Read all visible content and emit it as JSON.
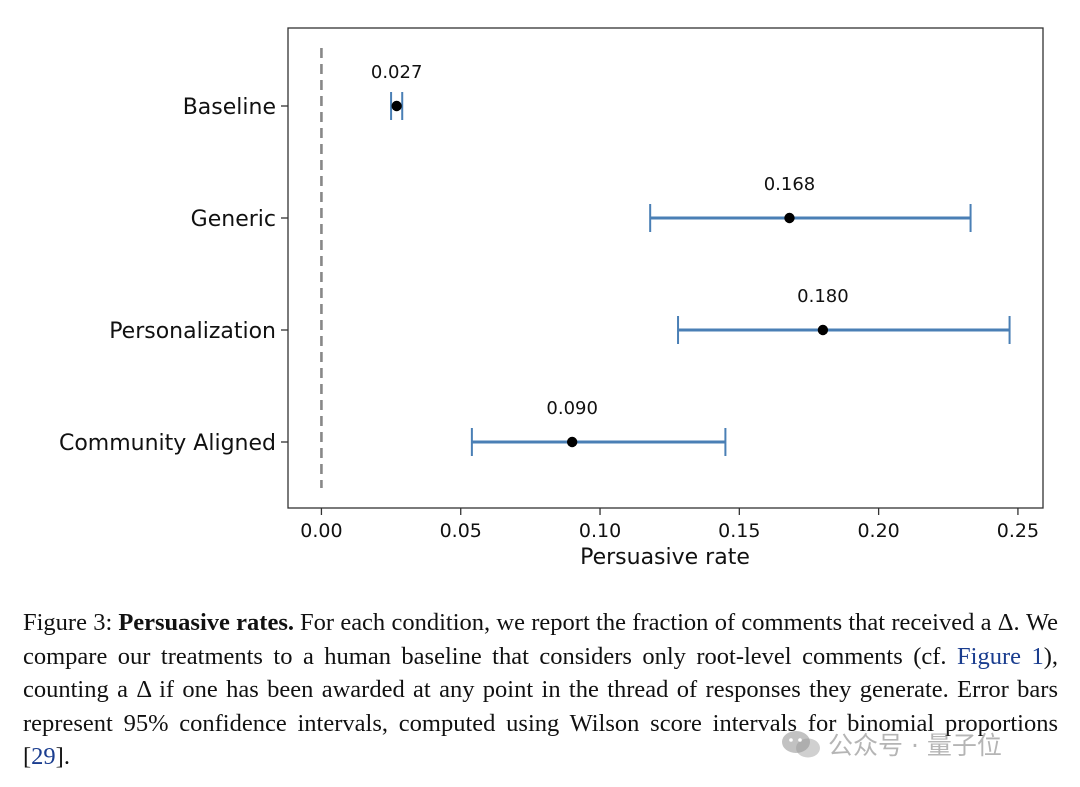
{
  "chart_data": {
    "type": "errorbar",
    "categories": [
      "Baseline",
      "Generic",
      "Personalization",
      "Community Aligned"
    ],
    "series": [
      {
        "values": [
          0.027,
          0.168,
          0.18,
          0.09
        ],
        "value_labels": [
          "0.027",
          "0.168",
          "0.180",
          "0.090"
        ],
        "ci_lower": [
          0.025,
          0.118,
          0.128,
          0.054
        ],
        "ci_upper": [
          0.029,
          0.233,
          0.247,
          0.145
        ]
      }
    ],
    "reference_line": {
      "x": 0.0,
      "style": "dashed"
    },
    "xlabel": "Persuasive rate",
    "xlim": [
      -0.012,
      0.259
    ],
    "xticks": [
      0.0,
      0.05,
      0.1,
      0.15,
      0.2,
      0.25
    ],
    "xtick_labels": [
      "0.00",
      "0.05",
      "0.10",
      "0.15",
      "0.20",
      "0.25"
    ],
    "grid": false,
    "colors": {
      "errorbar": "#4a7fb5",
      "point": "#000000",
      "reference": "#888888"
    }
  },
  "caption": {
    "figure_label": "Figure 3:",
    "title": "Persuasive rates.",
    "text_1": "For each condition, we report the fraction of comments that received a Δ.  We compare our treatments to a human baseline that considers only root-level comments (cf. ",
    "link_figure": "Figure 1",
    "text_2": "), counting a Δ if one has been awarded at any point in the thread of responses they generate. Error bars represent 95% confidence intervals, computed using Wilson score intervals for binomial proportions [",
    "link_ref": "29",
    "text_3": "]."
  },
  "watermark": {
    "text": "公众号 · 量子位",
    "icon": "wechat-icon"
  }
}
